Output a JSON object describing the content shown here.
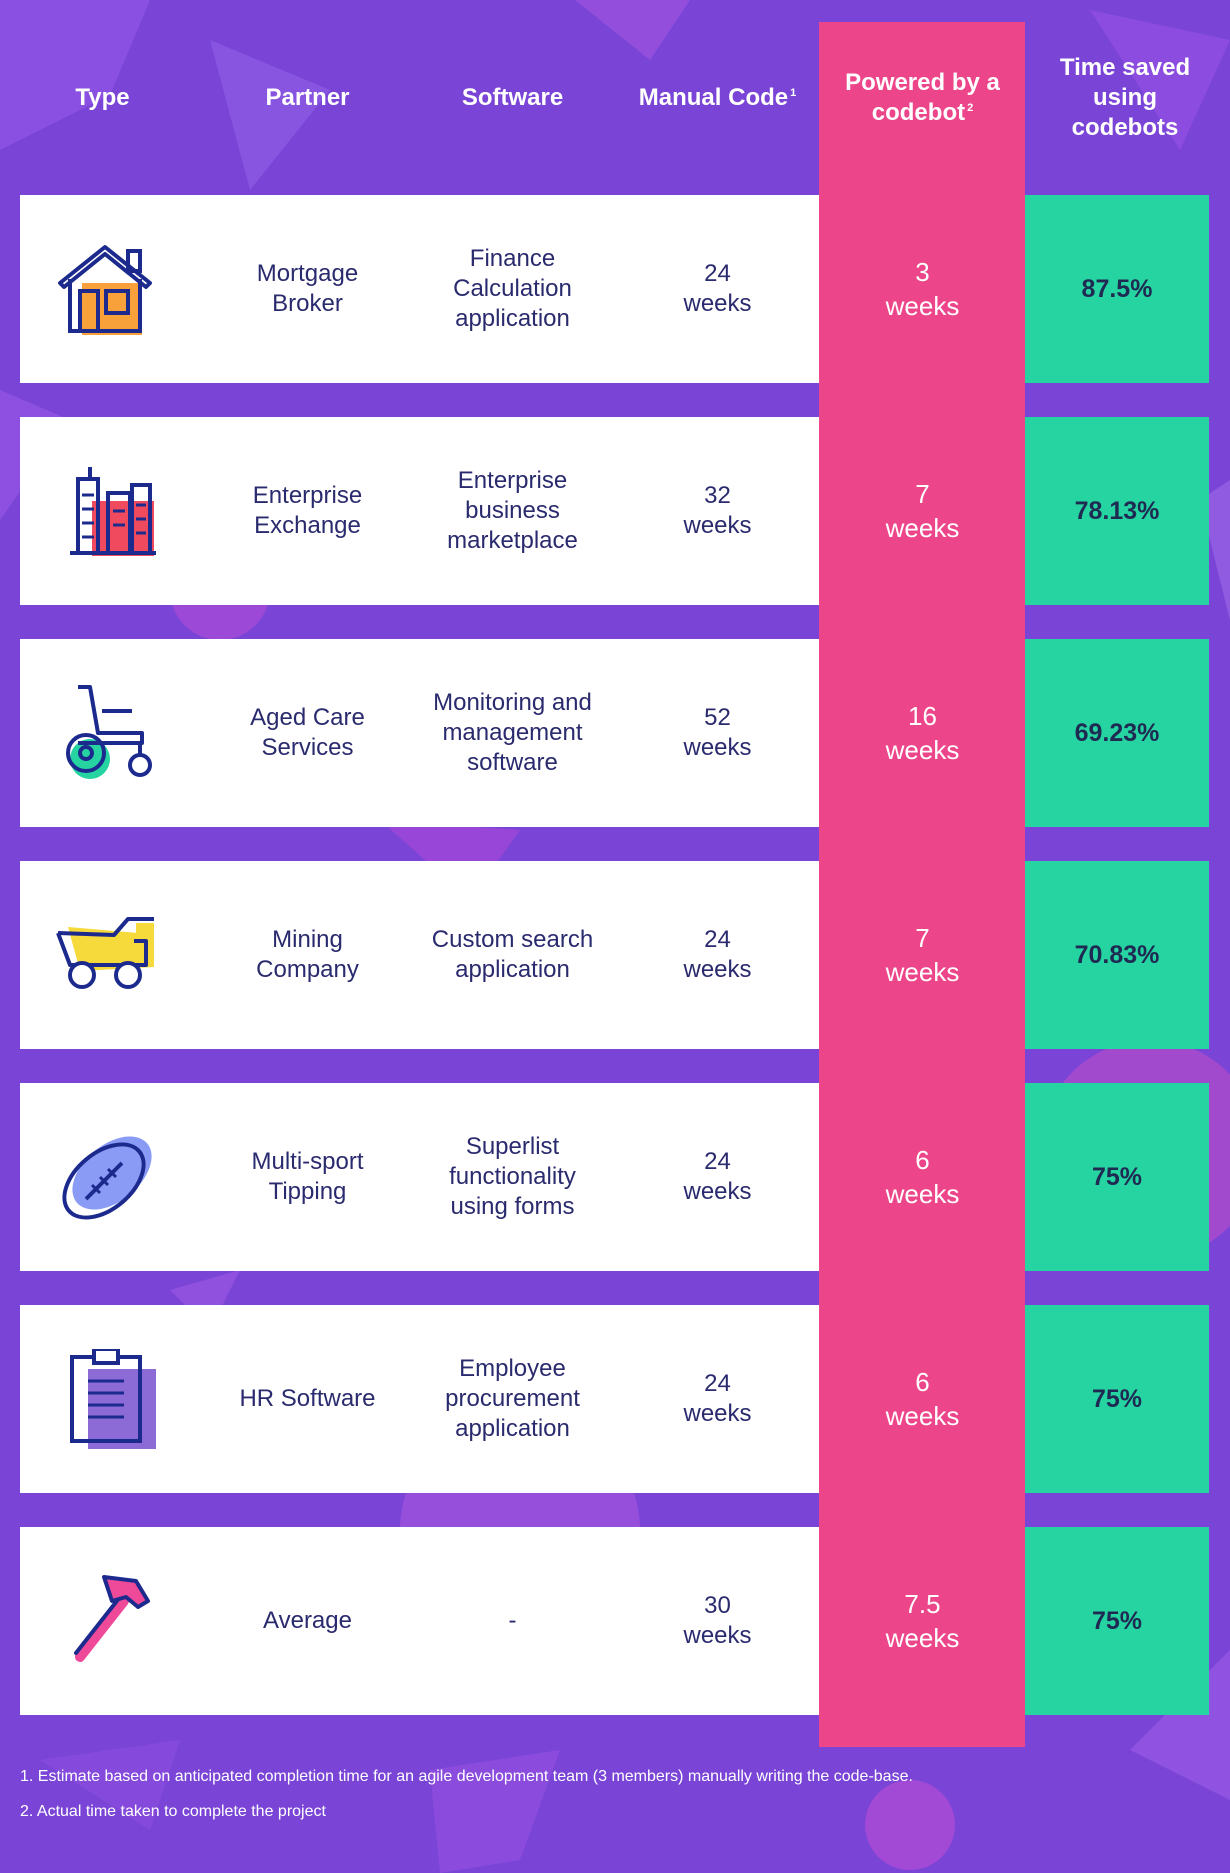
{
  "headers": {
    "type": "Type",
    "partner": "Partner",
    "software": "Software",
    "manual": "Manual Code",
    "manual_sup": "1",
    "powered": "Powered by a codebot",
    "powered_sup": "2",
    "saved": "Time saved using codebots"
  },
  "rows": [
    {
      "icon": "house-icon",
      "partner": "Mortgage\nBroker",
      "software": "Finance\nCalculation\napplication",
      "manual": "24\nweeks",
      "powered": "3\nweeks",
      "saved": "87.5%"
    },
    {
      "icon": "city-buildings-icon",
      "partner": "Enterprise\nExchange",
      "software": "Enterprise\nbusiness\nmarketplace",
      "manual": "32\nweeks",
      "powered": "7\nweeks",
      "saved": "78.13%"
    },
    {
      "icon": "wheelchair-icon",
      "partner": "Aged Care\nServices",
      "software": "Monitoring and\nmanagement\nsoftware",
      "manual": "52\nweeks",
      "powered": "16\nweeks",
      "saved": "69.23%"
    },
    {
      "icon": "mining-truck-icon",
      "partner": "Mining\nCompany",
      "software": "Custom search\napplication",
      "manual": "24\nweeks",
      "powered": "7\nweeks",
      "saved": "70.83%"
    },
    {
      "icon": "football-icon",
      "partner": "Multi-sport\nTipping",
      "software": "Superlist\nfunctionality\nusing forms",
      "manual": "24\nweeks",
      "powered": "6\nweeks",
      "saved": "75%"
    },
    {
      "icon": "clipboard-icon",
      "partner": "HR Software",
      "software": "Employee\nprocurement\napplication",
      "manual": "24\nweeks",
      "powered": "6\nweeks",
      "saved": "75%"
    },
    {
      "icon": "hammer-icon",
      "partner": "Average",
      "software": "-",
      "manual": "30\nweeks",
      "powered": "7.5\nweeks",
      "saved": "75%"
    }
  ],
  "footnotes": [
    "1. Estimate based on anticipated completion time for an agile development team (3 members) manually writing the code-base.",
    "2.  Actual time taken to complete the project"
  ],
  "colors": {
    "background": "#7a45d6",
    "highlight_column": "#ec4589",
    "saved_column": "#26d4a2",
    "text": "#2a2a6e"
  }
}
